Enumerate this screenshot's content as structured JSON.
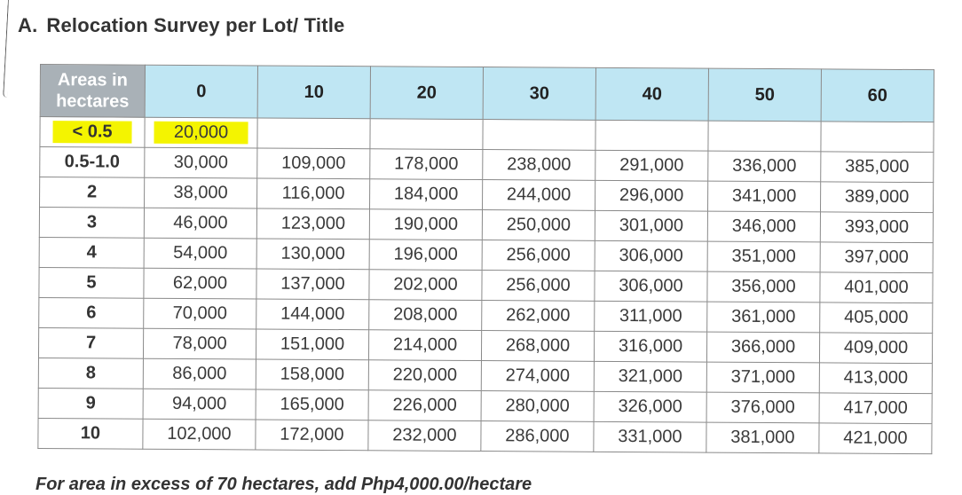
{
  "heading": {
    "letter": "A.",
    "title": "Relocation Survey per Lot/ Title"
  },
  "table": {
    "corner_label": "Areas in hectares",
    "columns": [
      "0",
      "10",
      "20",
      "30",
      "40",
      "50",
      "60"
    ],
    "rows": [
      {
        "area": "< 0.5",
        "values": [
          "20,000",
          "",
          "",
          "",
          "",
          "",
          ""
        ],
        "highlighted": true
      },
      {
        "area": "0.5-1.0",
        "values": [
          "30,000",
          "109,000",
          "178,000",
          "238,000",
          "291,000",
          "336,000",
          "385,000"
        ]
      },
      {
        "area": "2",
        "values": [
          "38,000",
          "116,000",
          "184,000",
          "244,000",
          "296,000",
          "341,000",
          "389,000"
        ]
      },
      {
        "area": "3",
        "values": [
          "46,000",
          "123,000",
          "190,000",
          "250,000",
          "301,000",
          "346,000",
          "393,000"
        ]
      },
      {
        "area": "4",
        "values": [
          "54,000",
          "130,000",
          "196,000",
          "256,000",
          "306,000",
          "351,000",
          "397,000"
        ]
      },
      {
        "area": "5",
        "values": [
          "62,000",
          "137,000",
          "202,000",
          "256,000",
          "306,000",
          "356,000",
          "401,000"
        ]
      },
      {
        "area": "6",
        "values": [
          "70,000",
          "144,000",
          "208,000",
          "262,000",
          "311,000",
          "361,000",
          "405,000"
        ]
      },
      {
        "area": "7",
        "values": [
          "78,000",
          "151,000",
          "214,000",
          "268,000",
          "316,000",
          "366,000",
          "409,000"
        ]
      },
      {
        "area": "8",
        "values": [
          "86,000",
          "158,000",
          "220,000",
          "274,000",
          "321,000",
          "371,000",
          "413,000"
        ]
      },
      {
        "area": "9",
        "values": [
          "94,000",
          "165,000",
          "226,000",
          "280,000",
          "326,000",
          "376,000",
          "417,000"
        ]
      },
      {
        "area": "10",
        "values": [
          "102,000",
          "172,000",
          "232,000",
          "286,000",
          "331,000",
          "381,000",
          "421,000"
        ]
      }
    ]
  },
  "footnote": "For area in excess of 70 hectares, add Php4,000.00/hectare",
  "colors": {
    "header_bg": "#bfe6f3",
    "corner_bg": "#a9b1b7",
    "highlight": "#f4f400"
  }
}
